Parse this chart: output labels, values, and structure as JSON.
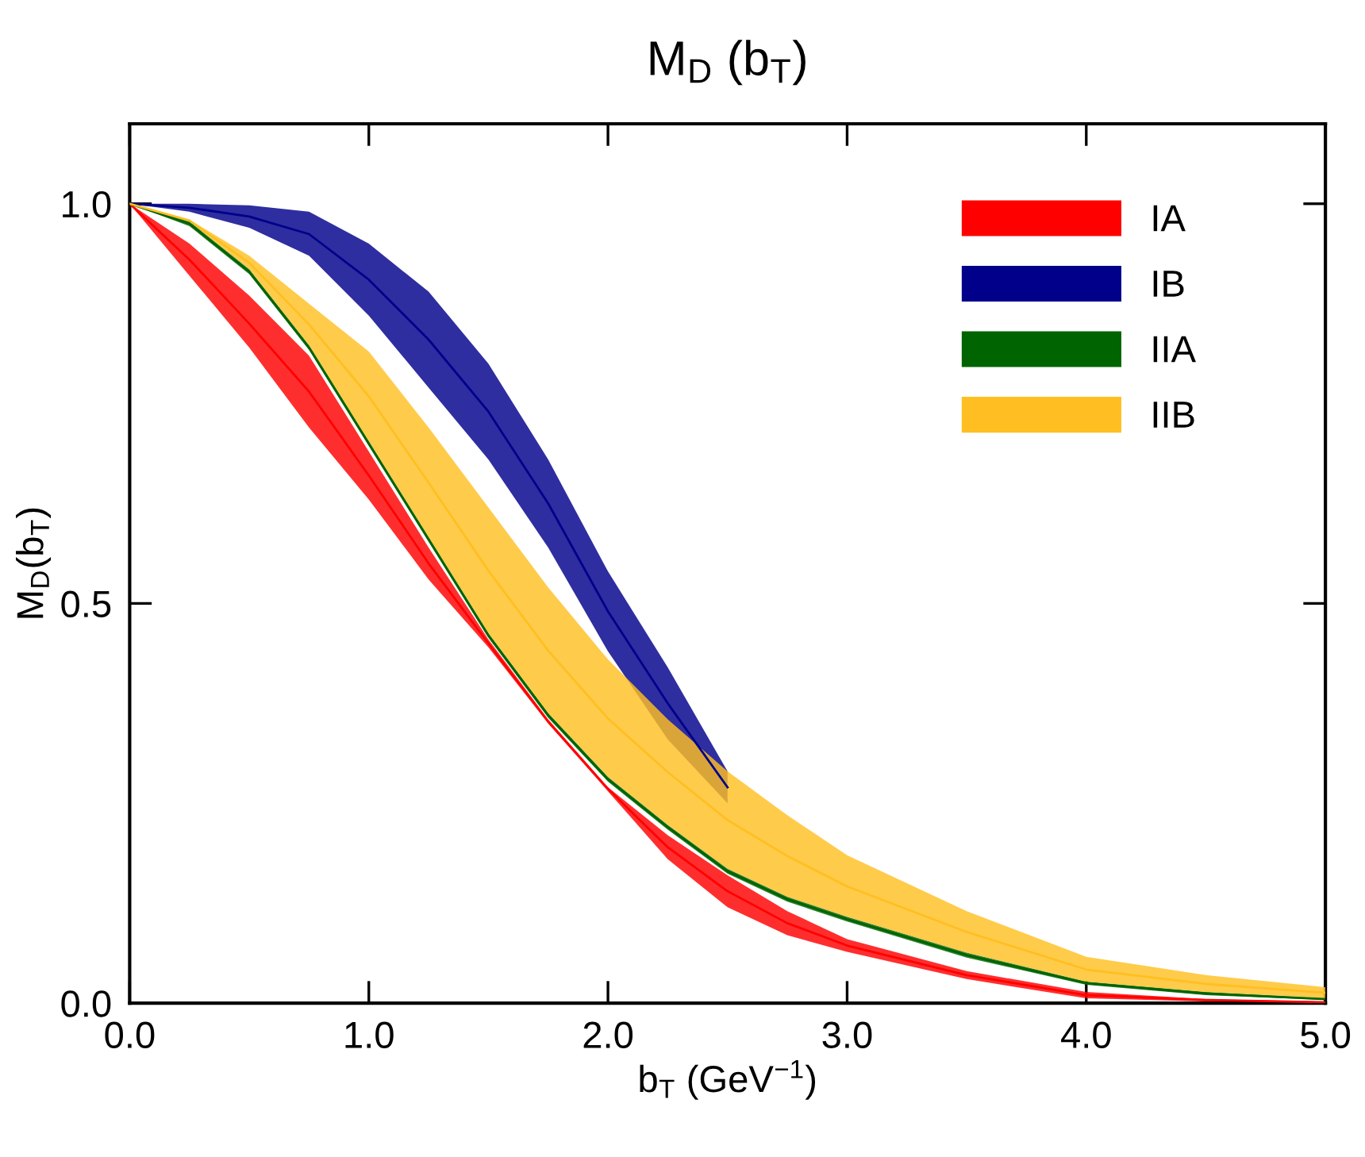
{
  "chart_data": {
    "type": "line",
    "title": "M$_{D}$ (b$_{T}$)",
    "xlabel": "b$_{T}$ (GeV$^{−1}$)",
    "ylabel": "M$_{D}$(b$_{T}$)",
    "x": [
      0,
      0.25,
      0.5,
      0.75,
      1.0,
      1.25,
      1.5,
      1.75,
      2.0,
      2.25,
      2.5,
      2.75,
      3.0,
      3.5,
      4.0,
      4.5,
      5.0
    ],
    "series": [
      {
        "name": "IA",
        "color": "#ff0000",
        "lower": [
          1.0,
          0.91,
          0.82,
          0.72,
          0.63,
          0.53,
          0.445,
          0.35,
          0.265,
          0.18,
          0.12,
          0.085,
          0.064,
          0.03,
          0.006,
          0.002,
          0.0
        ],
        "upper": [
          1.0,
          0.95,
          0.885,
          0.81,
          0.69,
          0.57,
          0.455,
          0.355,
          0.27,
          0.21,
          0.16,
          0.115,
          0.08,
          0.04,
          0.014,
          0.005,
          0.002
        ],
        "values": [
          1.0,
          0.93,
          0.85,
          0.765,
          0.66,
          0.55,
          0.45,
          0.352,
          0.268,
          0.195,
          0.14,
          0.1,
          0.072,
          0.035,
          0.01,
          0.004,
          0.001
        ]
      },
      {
        "name": "IB",
        "color": "#00008b",
        "lower": [
          1.0,
          0.99,
          0.97,
          0.935,
          0.86,
          0.77,
          0.68,
          0.57,
          0.44,
          0.33,
          0.25,
          null,
          null,
          null,
          null,
          null,
          null
        ],
        "upper": [
          1.0,
          1.0,
          0.998,
          0.99,
          0.95,
          0.89,
          0.8,
          0.68,
          0.54,
          0.42,
          0.29,
          null,
          null,
          null,
          null,
          null,
          null
        ],
        "values": [
          1.0,
          0.995,
          0.984,
          0.962,
          0.905,
          0.83,
          0.74,
          0.625,
          0.49,
          0.375,
          0.27,
          null,
          null,
          null,
          null,
          null,
          null
        ]
      },
      {
        "name": "IIA",
        "color": "#006400",
        "lower": [
          1.0,
          0.972,
          0.912,
          0.817,
          0.697,
          0.577,
          0.457,
          0.357,
          0.277,
          0.217,
          0.162,
          0.127,
          0.102,
          0.057,
          0.023,
          0.01,
          0.004
        ],
        "upper": [
          1.0,
          0.978,
          0.918,
          0.823,
          0.703,
          0.583,
          0.463,
          0.363,
          0.283,
          0.223,
          0.168,
          0.133,
          0.108,
          0.063,
          0.027,
          0.014,
          0.006
        ],
        "values": [
          1.0,
          0.975,
          0.915,
          0.82,
          0.7,
          0.58,
          0.46,
          0.36,
          0.28,
          0.22,
          0.165,
          0.13,
          0.105,
          0.06,
          0.025,
          0.012,
          0.005
        ]
      },
      {
        "name": "IIB",
        "color": "#ffbf22",
        "lower": [
          1.0,
          0.978,
          0.918,
          0.823,
          0.703,
          0.583,
          0.463,
          0.363,
          0.283,
          0.223,
          0.168,
          0.133,
          0.108,
          0.063,
          0.027,
          0.014,
          0.006
        ],
        "upper": [
          1.0,
          0.98,
          0.935,
          0.875,
          0.815,
          0.72,
          0.62,
          0.52,
          0.43,
          0.355,
          0.29,
          0.235,
          0.185,
          0.115,
          0.058,
          0.035,
          0.02
        ],
        "values": [
          1.0,
          0.979,
          0.926,
          0.849,
          0.759,
          0.651,
          0.541,
          0.441,
          0.356,
          0.289,
          0.229,
          0.184,
          0.146,
          0.089,
          0.042,
          0.024,
          0.013
        ]
      }
    ],
    "xlim": [
      0,
      5
    ],
    "ylim": [
      0,
      1.1
    ],
    "xticks": [
      {
        "value": 0,
        "label": "0.0"
      },
      {
        "value": 1,
        "label": "1.0"
      },
      {
        "value": 2,
        "label": "2.0"
      },
      {
        "value": 3,
        "label": "3.0"
      },
      {
        "value": 4,
        "label": "4.0"
      },
      {
        "value": 5,
        "label": "5.0"
      }
    ],
    "yticks": [
      {
        "value": 0,
        "label": "0.0"
      },
      0.5,
      {
        "value": 1,
        "label": "1.0"
      }
    ],
    "grid": false,
    "legend": "top right"
  }
}
